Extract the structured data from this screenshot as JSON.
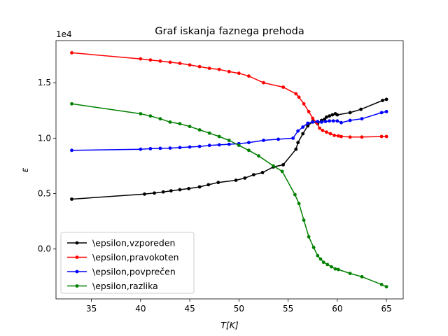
{
  "chart_data": {
    "type": "line",
    "title": "Graf iskanja faznega prehoda",
    "xlabel": "T[K]",
    "ylabel": "ε",
    "y_offset_text": "1e4",
    "xlim": [
      31.4,
      66.7
    ],
    "ylim": [
      -4500,
      18800
    ],
    "xticks": [
      35,
      40,
      45,
      50,
      55,
      60,
      65
    ],
    "yticks": [
      0,
      5000,
      10000,
      15000
    ],
    "ytick_labels": [
      "0.0",
      "0.5",
      "1.0",
      "1.5"
    ],
    "grid": false,
    "legend_position": "lower-left",
    "series": [
      {
        "name": "\\epsilon,vzporeden",
        "color": "#000000",
        "x": [
          33,
          40.4,
          41.4,
          42.3,
          43.1,
          44.0,
          44.9,
          46.0,
          46.9,
          47.9,
          49.7,
          50.6,
          51.5,
          52.4,
          53.5,
          54.5,
          55.8,
          56.0,
          56.5,
          57.0,
          57.5,
          58.0,
          58.4,
          58.7,
          58.9,
          59.2,
          59.5,
          59.8,
          60.0,
          61.3,
          62.4,
          64.6,
          65.0
        ],
        "y": [
          4500,
          4950,
          5050,
          5150,
          5250,
          5350,
          5450,
          5600,
          5800,
          6000,
          6200,
          6400,
          6700,
          6900,
          7400,
          7600,
          9000,
          9600,
          10400,
          11100,
          11500,
          11300,
          11600,
          11700,
          11900,
          12000,
          12100,
          12200,
          12100,
          12300,
          12600,
          13400,
          13500
        ]
      },
      {
        "name": "\\epsilon,pravokoten",
        "color": "#ff0000",
        "x": [
          33,
          40,
          41,
          42,
          43,
          44,
          45,
          46,
          47,
          48,
          49,
          50,
          51,
          52.5,
          54.5,
          55.8,
          56.1,
          56.6,
          57.1,
          57.5,
          57.9,
          58.2,
          58.5,
          58.9,
          59.3,
          59.7,
          60.1,
          60.4,
          61.3,
          62.5,
          64.5,
          65.0
        ],
        "y": [
          17700,
          17150,
          17050,
          16950,
          16850,
          16750,
          16600,
          16450,
          16300,
          16200,
          16000,
          15850,
          15600,
          15000,
          14600,
          14000,
          13700,
          13100,
          12400,
          11800,
          11400,
          10900,
          10700,
          10550,
          10400,
          10250,
          10200,
          10150,
          10100,
          10100,
          10150,
          10150
        ]
      },
      {
        "name": "\\epsilon,povprečen",
        "color": "#0000ff",
        "x": [
          33,
          40,
          41,
          42,
          43,
          44,
          45,
          46,
          47,
          48,
          49,
          50,
          51,
          52.5,
          54.0,
          55.5,
          56.0,
          56.5,
          57.0,
          57.5,
          58.0,
          58.4,
          58.8,
          59.2,
          59.6,
          60.0,
          60.4,
          61.3,
          62.5,
          64.5,
          65.0
        ],
        "y": [
          8900,
          9000,
          9050,
          9080,
          9100,
          9150,
          9200,
          9250,
          9350,
          9400,
          9450,
          9500,
          9600,
          9800,
          9900,
          10000,
          10650,
          11000,
          11350,
          11450,
          11500,
          11450,
          11500,
          11550,
          11550,
          11550,
          11400,
          11600,
          11750,
          12300,
          12400
        ]
      },
      {
        "name": "\\epsilon,razlika",
        "color": "#008000",
        "x": [
          33,
          40,
          41,
          42,
          43,
          44,
          45,
          46,
          47,
          48,
          49,
          50,
          51,
          52,
          53.5,
          54.4,
          55.7,
          56.1,
          56.6,
          57.1,
          57.6,
          58.0,
          58.3,
          58.6,
          59.0,
          59.4,
          59.8,
          60.1,
          61.3,
          62.5,
          64.5,
          65.0
        ],
        "y": [
          13100,
          12200,
          12000,
          11750,
          11450,
          11300,
          11050,
          10750,
          10450,
          10150,
          9800,
          9350,
          8900,
          8400,
          7500,
          7000,
          4900,
          4100,
          2600,
          1100,
          150,
          -600,
          -900,
          -1200,
          -1400,
          -1600,
          -1800,
          -1850,
          -2200,
          -2500,
          -3200,
          -3400
        ]
      }
    ]
  }
}
